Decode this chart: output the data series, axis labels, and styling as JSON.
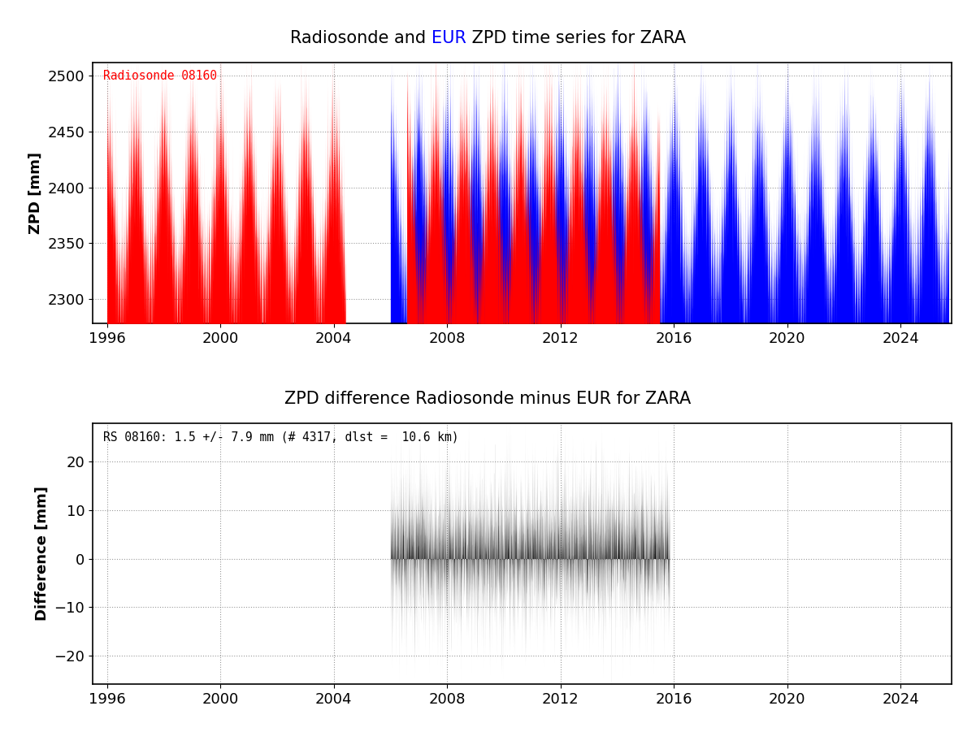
{
  "title1_parts": [
    {
      "text": "Radiosonde and ",
      "color": "black"
    },
    {
      "text": "EUR",
      "color": "blue"
    },
    {
      "text": " ZPD time series for ZARA",
      "color": "black"
    }
  ],
  "title2": "ZPD difference Radiosonde minus EUR for ZARA",
  "ylabel1": "ZPD [mm]",
  "ylabel2": "Difference [mm]",
  "xlim": [
    1995.5,
    2025.8
  ],
  "xticks": [
    1996,
    2000,
    2004,
    2008,
    2012,
    2016,
    2020,
    2024
  ],
  "ylim1": [
    2278,
    2512
  ],
  "yticks1": [
    2300,
    2350,
    2400,
    2450,
    2500
  ],
  "ylim2": [
    -26,
    28
  ],
  "yticks2": [
    -20,
    -10,
    0,
    10,
    20
  ],
  "red_seg1_start": 1996.0,
  "red_seg1_end": 2004.42,
  "red_seg2_start": 2006.58,
  "red_seg2_end": 2015.5,
  "blue_start": 2006.0,
  "blue_end": 2025.7,
  "diff_start": 2006.0,
  "diff_end": 2015.85,
  "annotation1": "Radiosonde 08160",
  "annotation2": "RS 08160: 1.5 +/- 7.9 mm (# 4317, dlst =  10.6 km)",
  "red_color": "#FF0000",
  "blue_color": "#0000FF",
  "black_color": "#000000",
  "bg_color": "#FFFFFF",
  "grid_color": "#808080",
  "baseline1": 2278,
  "baseline2": -26,
  "title_fontsize": 15,
  "axis_fontsize": 13,
  "tick_fontsize": 13,
  "annot_fontsize": 10.5
}
